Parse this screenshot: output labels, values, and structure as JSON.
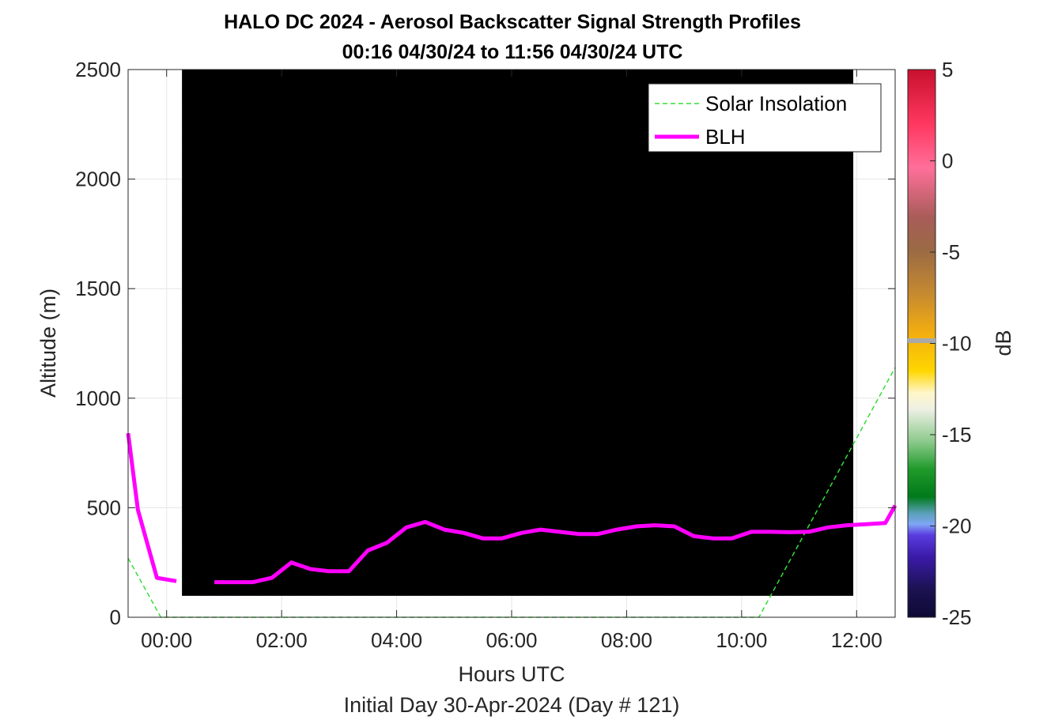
{
  "title_line1": "HALO DC 2024 - Aerosol Backscatter Signal Strength Profiles",
  "title_line2": "00:16 04/30/24 to 11:56 04/30/24  UTC",
  "xlabel": "Hours UTC",
  "ylabel": "Altitude (m)",
  "footer": "Initial Day 30-Apr-2024 (Day # 121)",
  "colorbar_label": "dB",
  "legend": {
    "solar": "Solar Insolation",
    "blh": "BLH"
  },
  "colors": {
    "solar": "#33dd33",
    "blh": "#ff00ff",
    "grid": "#e6e6e6",
    "axis": "#262626"
  },
  "chart_data": {
    "type": "heatmap",
    "x_range_hours": [
      -0.67,
      12.67
    ],
    "x_ticks": [
      "00:00",
      "02:00",
      "04:00",
      "06:00",
      "08:00",
      "10:00",
      "12:00"
    ],
    "x_tick_hours": [
      0,
      2,
      4,
      6,
      8,
      10,
      12
    ],
    "ylim": [
      0,
      2500
    ],
    "y_ticks": [
      0,
      500,
      1000,
      1500,
      2000,
      2500
    ],
    "clim": [
      -25,
      5
    ],
    "colorbar_ticks": [
      5,
      0,
      -5,
      -10,
      -15,
      -20,
      -25
    ],
    "heatmap_time_range": [
      "00:16",
      "11:56"
    ],
    "heatmap_altitude_range": [
      100,
      2500
    ],
    "series": [
      {
        "name": "BLH",
        "x_hours": [
          -0.67,
          -0.5,
          -0.17,
          0.17,
          0.5,
          0.83,
          1.17,
          1.5,
          1.83,
          2.17,
          2.5,
          2.83,
          3.17,
          3.5,
          3.83,
          4.17,
          4.5,
          4.83,
          5.17,
          5.5,
          5.83,
          6.17,
          6.5,
          6.83,
          7.17,
          7.5,
          7.83,
          8.17,
          8.5,
          8.83,
          9.17,
          9.5,
          9.83,
          10.17,
          10.5,
          10.83,
          11.17,
          11.5,
          11.83,
          12.17,
          12.5,
          12.67
        ],
        "altitude_m": [
          840,
          490,
          180,
          165,
          null,
          160,
          160,
          160,
          180,
          250,
          220,
          210,
          210,
          305,
          340,
          410,
          435,
          400,
          385,
          360,
          360,
          385,
          400,
          390,
          380,
          380,
          400,
          415,
          420,
          415,
          370,
          360,
          360,
          390,
          390,
          388,
          390,
          410,
          420,
          425,
          430,
          510
        ]
      },
      {
        "name": "Solar Insolation",
        "x_hours": [
          -0.67,
          -0.1,
          10.3,
          12.67
        ],
        "altitude_m": [
          270,
          0,
          0,
          1140
        ]
      }
    ]
  }
}
